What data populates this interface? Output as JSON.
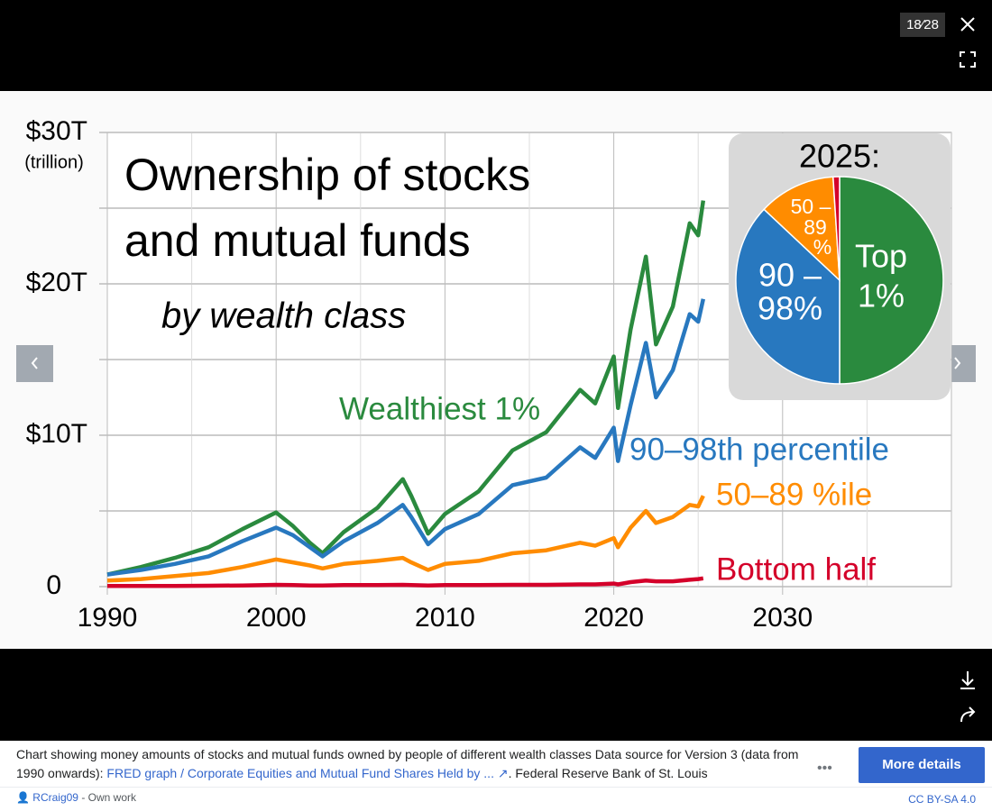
{
  "viewer": {
    "counter": "18⁄28",
    "more_details": "More details",
    "caption_text": "Chart showing money amounts of stocks and mutual funds owned by people of different wealth classes Data source for Version 3 (data from 1990 onwards): ",
    "caption_link": "FRED graph / Corporate Equities and Mutual Fund Shares Held by ...",
    "caption_end": ". Federal Reserve Bank of St. Louis",
    "author": "RCraig09",
    "author_note": "- Own work",
    "license": "CC BY-SA 4.0"
  },
  "chart_data": [
    {
      "type": "line",
      "title": [
        "Ownership of stocks",
        "and mutual funds"
      ],
      "subtitle": "by wealth class",
      "ylabel": "(trillion)",
      "x": [
        1990,
        1992,
        1994,
        1996,
        1998,
        2000,
        2001,
        2002,
        2002.75,
        2004,
        2006,
        2007.5,
        2008,
        2009,
        2010,
        2012,
        2014,
        2016,
        2018,
        2018.9,
        2020,
        2020.25,
        2021,
        2021.9,
        2022.5,
        2023.5,
        2024.5,
        2025,
        2025.3
      ],
      "series": [
        {
          "name": "Wealthiest 1%",
          "color": "#2a8a3e",
          "values": [
            0.8,
            1.3,
            1.9,
            2.6,
            3.8,
            4.9,
            4.0,
            2.9,
            2.2,
            3.6,
            5.2,
            7.1,
            6.0,
            3.5,
            4.8,
            6.3,
            9.0,
            10.2,
            13.0,
            12.1,
            15.2,
            11.8,
            17.0,
            21.8,
            16.0,
            18.5,
            24.0,
            23.2,
            25.5
          ]
        },
        {
          "name": "90–98th percentile",
          "color": "#2878bf",
          "values": [
            0.8,
            1.1,
            1.5,
            2.0,
            3.0,
            3.9,
            3.4,
            2.6,
            2.0,
            3.0,
            4.2,
            5.4,
            4.6,
            2.8,
            3.8,
            4.8,
            6.7,
            7.2,
            9.2,
            8.5,
            10.5,
            8.3,
            12.0,
            16.1,
            12.5,
            14.3,
            18.0,
            17.5,
            19.0
          ]
        },
        {
          "name": "50–89 %ile",
          "color": "#ff8c00",
          "values": [
            0.4,
            0.5,
            0.7,
            0.9,
            1.3,
            1.8,
            1.6,
            1.4,
            1.2,
            1.5,
            1.7,
            1.9,
            1.6,
            1.1,
            1.5,
            1.7,
            2.2,
            2.4,
            2.9,
            2.7,
            3.2,
            2.6,
            3.9,
            5.0,
            4.2,
            4.6,
            5.4,
            5.3,
            6.0
          ]
        },
        {
          "name": "Bottom half",
          "color": "#d4002a",
          "values": [
            0.05,
            0.05,
            0.05,
            0.06,
            0.08,
            0.12,
            0.1,
            0.08,
            0.08,
            0.1,
            0.1,
            0.12,
            0.1,
            0.08,
            0.1,
            0.1,
            0.12,
            0.12,
            0.15,
            0.15,
            0.2,
            0.15,
            0.3,
            0.4,
            0.35,
            0.35,
            0.45,
            0.5,
            0.55
          ]
        }
      ],
      "xlim": [
        1990,
        2040
      ],
      "xticks": [
        1990,
        2000,
        2010,
        2020,
        2030
      ],
      "x_minor_ticks": [
        1995,
        2005,
        2015,
        2025,
        2035
      ],
      "ylim": [
        0,
        30
      ],
      "yticks": [
        {
          "value": 30,
          "label": "$30T"
        },
        {
          "value": 20,
          "label": "$20T"
        },
        {
          "value": 10,
          "label": "$10T"
        },
        0
      ],
      "y_minor_ticks": [
        5,
        15,
        25
      ],
      "grid": true
    },
    {
      "type": "pie",
      "title": "2025:",
      "categories": [
        [
          "Top",
          "1%"
        ],
        [
          "90 –",
          "98%"
        ],
        [
          "50 –",
          "89",
          "%"
        ],
        null
      ],
      "values": [
        50,
        37,
        12,
        1
      ],
      "colors": [
        "#2a8a3e",
        "#2878bf",
        "#ff8c00",
        "#d4002a"
      ]
    }
  ]
}
